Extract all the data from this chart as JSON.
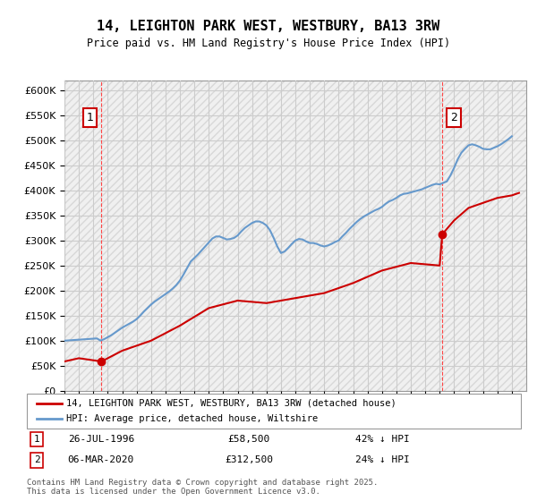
{
  "title": "14, LEIGHTON PARK WEST, WESTBURY, BA13 3RW",
  "subtitle": "Price paid vs. HM Land Registry's House Price Index (HPI)",
  "background_color": "#ffffff",
  "plot_bg_color": "#ffffff",
  "grid_color": "#cccccc",
  "hatch_color": "#e0e0e0",
  "ylim": [
    0,
    620000
  ],
  "yticks": [
    0,
    50000,
    100000,
    150000,
    200000,
    250000,
    300000,
    350000,
    400000,
    450000,
    500000,
    550000,
    600000
  ],
  "ytick_labels": [
    "£0",
    "£50K",
    "£100K",
    "£150K",
    "£200K",
    "£250K",
    "£300K",
    "£350K",
    "£400K",
    "£450K",
    "£500K",
    "£550K",
    "£600K"
  ],
  "xlim_start": 1994.0,
  "xlim_end": 2026.0,
  "sale1_x": 1996.57,
  "sale1_y": 58500,
  "sale1_label": "1",
  "sale1_date": "26-JUL-1996",
  "sale1_price": "£58,500",
  "sale1_hpi": "42% ↓ HPI",
  "sale2_x": 2020.18,
  "sale2_y": 312500,
  "sale2_label": "2",
  "sale2_date": "06-MAR-2020",
  "sale2_price": "£312,500",
  "sale2_hpi": "24% ↓ HPI",
  "vline1_x": 1996.57,
  "vline2_x": 2020.18,
  "red_line_color": "#cc0000",
  "blue_line_color": "#6699cc",
  "vline_color": "#ff4444",
  "legend_label_red": "14, LEIGHTON PARK WEST, WESTBURY, BA13 3RW (detached house)",
  "legend_label_blue": "HPI: Average price, detached house, Wiltshire",
  "footnote": "Contains HM Land Registry data © Crown copyright and database right 2025.\nThis data is licensed under the Open Government Licence v3.0.",
  "hpi_data": {
    "dates": [
      1994.0,
      1994.25,
      1994.5,
      1994.75,
      1995.0,
      1995.25,
      1995.5,
      1995.75,
      1996.0,
      1996.25,
      1996.5,
      1996.75,
      1997.0,
      1997.25,
      1997.5,
      1997.75,
      1998.0,
      1998.25,
      1998.5,
      1998.75,
      1999.0,
      1999.25,
      1999.5,
      1999.75,
      2000.0,
      2000.25,
      2000.5,
      2000.75,
      2001.0,
      2001.25,
      2001.5,
      2001.75,
      2002.0,
      2002.25,
      2002.5,
      2002.75,
      2003.0,
      2003.25,
      2003.5,
      2003.75,
      2004.0,
      2004.25,
      2004.5,
      2004.75,
      2005.0,
      2005.25,
      2005.5,
      2005.75,
      2006.0,
      2006.25,
      2006.5,
      2006.75,
      2007.0,
      2007.25,
      2007.5,
      2007.75,
      2008.0,
      2008.25,
      2008.5,
      2008.75,
      2009.0,
      2009.25,
      2009.5,
      2009.75,
      2010.0,
      2010.25,
      2010.5,
      2010.75,
      2011.0,
      2011.25,
      2011.5,
      2011.75,
      2012.0,
      2012.25,
      2012.5,
      2012.75,
      2013.0,
      2013.25,
      2013.5,
      2013.75,
      2014.0,
      2014.25,
      2014.5,
      2014.75,
      2015.0,
      2015.25,
      2015.5,
      2015.75,
      2016.0,
      2016.25,
      2016.5,
      2016.75,
      2017.0,
      2017.25,
      2017.5,
      2017.75,
      2018.0,
      2018.25,
      2018.5,
      2018.75,
      2019.0,
      2019.25,
      2019.5,
      2019.75,
      2020.0,
      2020.25,
      2020.5,
      2020.75,
      2021.0,
      2021.25,
      2021.5,
      2021.75,
      2022.0,
      2022.25,
      2022.5,
      2022.75,
      2023.0,
      2023.25,
      2023.5,
      2023.75,
      2024.0,
      2024.25,
      2024.5,
      2024.75,
      2025.0
    ],
    "values": [
      100000,
      100500,
      101000,
      101500,
      102000,
      102500,
      103000,
      103500,
      104000,
      104500,
      100200,
      103000,
      107000,
      111000,
      116000,
      121000,
      126000,
      130000,
      134000,
      138000,
      143000,
      150000,
      158000,
      165000,
      172000,
      178000,
      183000,
      188000,
      193000,
      198000,
      204000,
      211000,
      220000,
      232000,
      245000,
      258000,
      265000,
      272000,
      280000,
      288000,
      296000,
      304000,
      308000,
      308000,
      305000,
      302000,
      303000,
      305000,
      310000,
      318000,
      325000,
      330000,
      335000,
      338000,
      338000,
      335000,
      330000,
      320000,
      305000,
      288000,
      275000,
      278000,
      285000,
      293000,
      300000,
      303000,
      302000,
      298000,
      295000,
      295000,
      293000,
      290000,
      288000,
      290000,
      293000,
      297000,
      300000,
      308000,
      315000,
      323000,
      330000,
      337000,
      343000,
      348000,
      352000,
      356000,
      360000,
      363000,
      367000,
      373000,
      378000,
      381000,
      385000,
      390000,
      393000,
      394000,
      396000,
      398000,
      400000,
      402000,
      405000,
      408000,
      411000,
      413000,
      412000,
      415000,
      418000,
      430000,
      445000,
      462000,
      475000,
      483000,
      490000,
      492000,
      490000,
      487000,
      483000,
      482000,
      482000,
      485000,
      488000,
      492000,
      497000,
      502000,
      508000
    ]
  },
  "sale_line_data": {
    "dates": [
      1994.0,
      1996.57,
      1996.57,
      2020.18,
      2020.18,
      2025.5
    ],
    "values": [
      58500,
      58500,
      312500,
      312500,
      390000,
      390000
    ],
    "interp_dates": [
      1994.0,
      1995.0,
      1996.57,
      1998.0,
      2000.0,
      2002.0,
      2004.0,
      2006.0,
      2008.0,
      2010.0,
      2012.0,
      2014.0,
      2016.0,
      2018.0,
      2020.0,
      2020.18,
      2021.0,
      2022.0,
      2023.0,
      2024.0,
      2025.0,
      2025.5
    ],
    "interp_values": [
      58500,
      65000,
      58500,
      80000,
      100000,
      130000,
      165000,
      180000,
      175000,
      185000,
      195000,
      215000,
      240000,
      255000,
      250000,
      312500,
      340000,
      365000,
      375000,
      385000,
      390000,
      395000
    ]
  }
}
